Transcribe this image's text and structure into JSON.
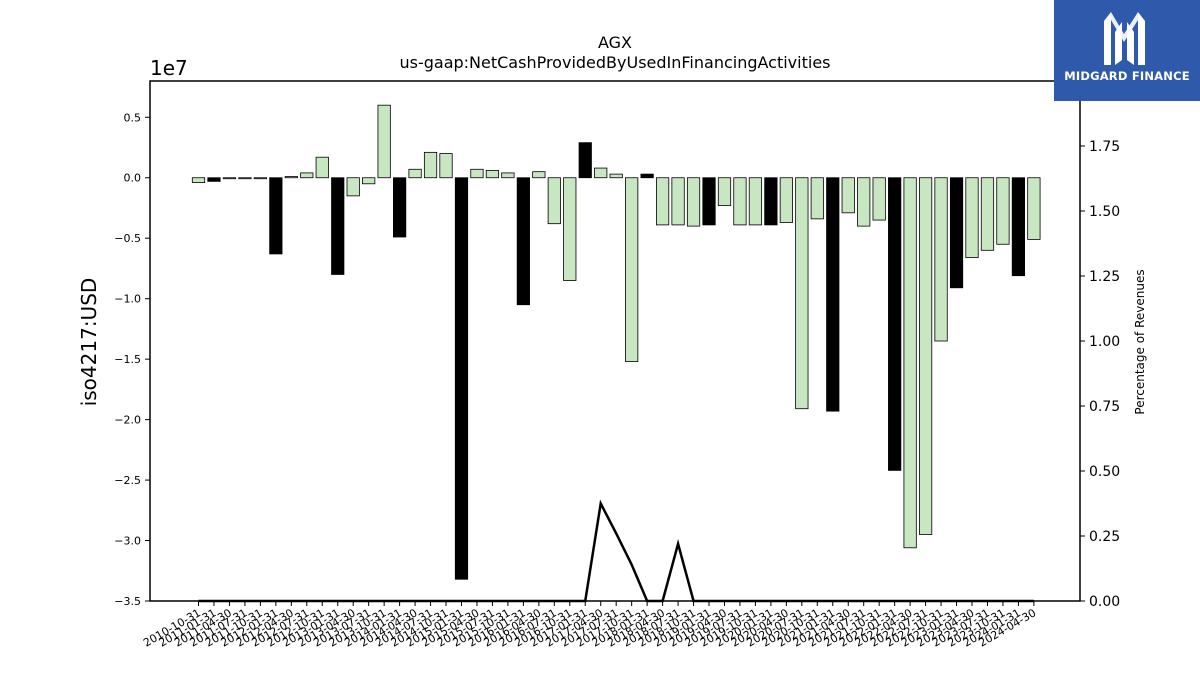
{
  "chart_data": {
    "type": "bar",
    "title": "AGX",
    "subtitle": "us-gaap:NetCashProvidedByUsedInFinancingActivities",
    "ylabel": "iso4217:USD",
    "y_offset_label": "1e7",
    "y2label": "Percentage of Revenues",
    "ylim": [
      -3.5,
      0.8
    ],
    "y2lim": [
      0,
      2.0
    ],
    "y_ticks": [
      0.5,
      0.0,
      -0.5,
      -1.0,
      -1.5,
      -2.0,
      -2.5,
      -3.0,
      -3.5
    ],
    "y_tick_labels": [
      "0.5",
      "0.0",
      "−0.5",
      "−1.0",
      "−1.5",
      "−2.0",
      "−2.5",
      "−3.0",
      "−3.5"
    ],
    "y2_ticks": [
      0.0,
      0.25,
      0.5,
      0.75,
      1.0,
      1.25,
      1.5,
      1.75
    ],
    "y2_tick_labels": [
      "0.00",
      "0.25",
      "0.50",
      "0.75",
      "1.00",
      "1.25",
      "1.50",
      "1.75"
    ],
    "colors": {
      "annual": "#000000",
      "quarterly": "#c9e6c2",
      "edge": "#000000",
      "line": "#000000"
    },
    "categories": [
      "2010-10-31",
      "2011-01-31",
      "2011-04-30",
      "2011-07-31",
      "2011-10-31",
      "2012-01-31",
      "2012-04-30",
      "2012-07-31",
      "2012-10-31",
      "2013-01-31",
      "2013-04-30",
      "2013-07-31",
      "2013-10-31",
      "2014-01-31",
      "2014-04-30",
      "2014-07-31",
      "2014-10-31",
      "2015-01-31",
      "2015-04-30",
      "2015-07-31",
      "2015-10-31",
      "2016-01-31",
      "2016-04-30",
      "2016-07-31",
      "2016-10-31",
      "2017-01-31",
      "2017-04-30",
      "2017-07-31",
      "2017-10-31",
      "2018-01-31",
      "2018-04-30",
      "2018-07-31",
      "2018-10-31",
      "2019-01-31",
      "2019-04-30",
      "2019-07-31",
      "2019-10-31",
      "2020-01-31",
      "2020-04-30",
      "2020-07-31",
      "2020-10-31",
      "2021-01-31",
      "2021-04-30",
      "2021-07-31",
      "2021-10-31",
      "2022-01-31",
      "2022-04-30",
      "2022-07-31",
      "2022-10-31",
      "2023-01-31",
      "2023-04-30",
      "2023-07-31",
      "2023-10-31",
      "2024-01-31",
      "2024-04-30"
    ],
    "values": [
      -0.04,
      -0.03,
      -0.005,
      -0.005,
      -0.005,
      -0.63,
      0.01,
      0.04,
      0.17,
      -0.8,
      -0.15,
      -0.05,
      0.6,
      -0.49,
      0.07,
      0.21,
      0.2,
      -3.32,
      0.07,
      0.06,
      0.04,
      -1.05,
      0.05,
      -0.38,
      -0.85,
      0.29,
      0.08,
      0.03,
      -1.52,
      0.03,
      -0.39,
      -0.39,
      -0.4,
      -0.39,
      -0.23,
      -0.39,
      -0.39,
      -0.39,
      -0.37,
      -1.91,
      -0.34,
      -1.93,
      -0.29,
      -0.4,
      -0.35,
      -2.42,
      -3.06,
      -2.95,
      -1.35,
      -0.91,
      -0.66,
      -0.6,
      -0.55,
      -0.81,
      -0.51
    ],
    "annual": [
      false,
      true,
      false,
      false,
      false,
      true,
      false,
      false,
      false,
      true,
      false,
      false,
      false,
      true,
      false,
      false,
      false,
      true,
      false,
      false,
      false,
      true,
      false,
      false,
      false,
      true,
      false,
      false,
      false,
      true,
      false,
      false,
      false,
      true,
      false,
      false,
      false,
      true,
      false,
      false,
      false,
      true,
      false,
      false,
      false,
      true,
      false,
      false,
      false,
      true,
      false,
      false,
      false,
      true,
      false
    ],
    "pct_revenues": [
      0,
      0,
      0,
      0,
      0,
      0,
      0,
      0,
      0,
      0,
      0,
      0,
      0,
      0,
      0,
      0,
      0,
      0,
      0,
      0,
      0,
      0,
      0,
      0,
      0,
      0,
      0.375,
      0.26,
      0.14,
      0,
      0,
      0.22,
      0,
      0,
      0,
      0,
      0,
      0,
      0,
      0,
      0,
      0,
      0,
      0,
      0,
      0,
      0,
      0,
      0,
      0,
      0,
      0,
      0,
      0,
      0
    ]
  },
  "logo": {
    "name": "MIDGARD FINANCE",
    "icon": "midgard-m-icon"
  }
}
